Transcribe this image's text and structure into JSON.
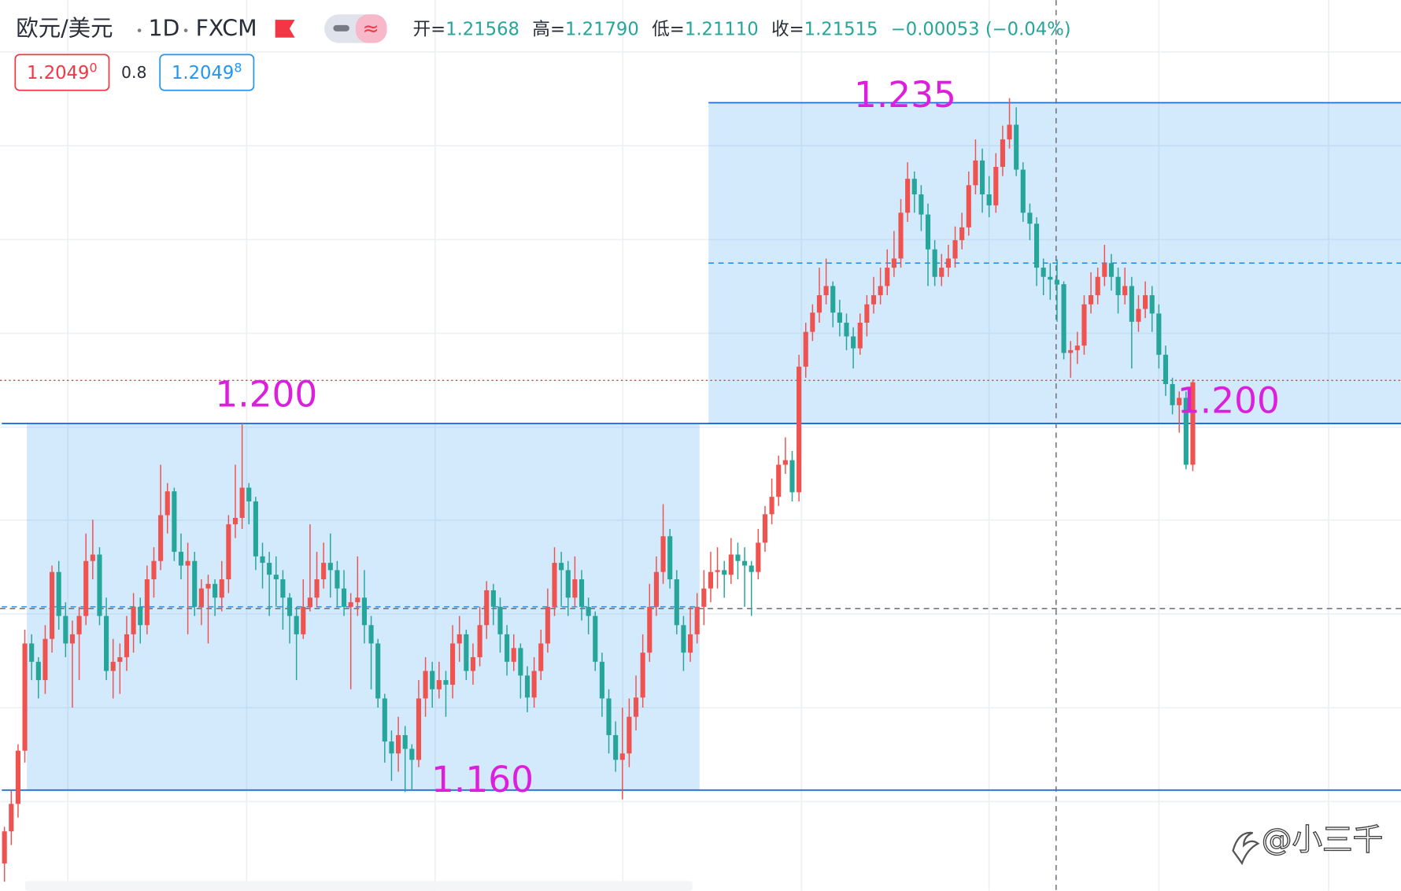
{
  "header": {
    "symbol": "欧元/美元",
    "interval": "1D",
    "source": "FXCM",
    "ohlc": [
      {
        "label": "开=",
        "value": "1.21568"
      },
      {
        "label": "高=",
        "value": "1.21790"
      },
      {
        "label": "低=",
        "value": "1.21110"
      },
      {
        "label": "收=",
        "value": "1.21515"
      }
    ],
    "change": "−0.00053 (−0.04%)"
  },
  "quote": {
    "sell": {
      "price": "1.2049",
      "pip": "0"
    },
    "spread": "0.8",
    "buy": {
      "price": "1.2049",
      "pip": "8"
    }
  },
  "watermark": "@小三千",
  "chart_data": {
    "type": "candlestick",
    "up_color": "#ef5350",
    "down_color": "#26a69a",
    "ylim": [
      1.149,
      1.2462
    ],
    "boxes": [
      {
        "top": 1.2,
        "bottom": 1.16
      },
      {
        "top": 1.235,
        "bottom": 1.2
      }
    ],
    "annotations": [
      {
        "value": 1.235,
        "label": "1.235"
      },
      {
        "value": 1.2,
        "label": "1.200"
      },
      {
        "value": 1.2,
        "label": "1.200"
      },
      {
        "value": 1.16,
        "label": "1.160"
      }
    ],
    "last_price": 1.2047,
    "crosshair_price": 1.1798,
    "ohlc": [
      [
        1.152,
        1.156,
        1.15,
        1.1555
      ],
      [
        1.1555,
        1.16,
        1.154,
        1.1585
      ],
      [
        1.1585,
        1.165,
        1.157,
        1.1643
      ],
      [
        1.1643,
        1.1775,
        1.163,
        1.176
      ],
      [
        1.176,
        1.177,
        1.172,
        1.174
      ],
      [
        1.174,
        1.1745,
        1.17,
        1.172
      ],
      [
        1.172,
        1.178,
        1.1705,
        1.1765
      ],
      [
        1.1765,
        1.1845,
        1.175,
        1.1838
      ],
      [
        1.1838,
        1.185,
        1.1775,
        1.179
      ],
      [
        1.179,
        1.1805,
        1.1745,
        1.176
      ],
      [
        1.176,
        1.1785,
        1.169,
        1.177
      ],
      [
        1.177,
        1.18,
        1.172,
        1.179
      ],
      [
        1.179,
        1.188,
        1.178,
        1.185
      ],
      [
        1.185,
        1.1895,
        1.183,
        1.1857
      ],
      [
        1.1857,
        1.1865,
        1.178,
        1.179
      ],
      [
        1.179,
        1.181,
        1.172,
        1.173
      ],
      [
        1.173,
        1.1765,
        1.17,
        1.174
      ],
      [
        1.174,
        1.176,
        1.1705,
        1.1745
      ],
      [
        1.1745,
        1.179,
        1.173,
        1.177
      ],
      [
        1.177,
        1.1815,
        1.175,
        1.18
      ],
      [
        1.18,
        1.181,
        1.176,
        1.178
      ],
      [
        1.178,
        1.1845,
        1.177,
        1.183
      ],
      [
        1.183,
        1.1865,
        1.181,
        1.185
      ],
      [
        1.185,
        1.1955,
        1.184,
        1.19
      ],
      [
        1.19,
        1.1935,
        1.188,
        1.1926
      ],
      [
        1.1926,
        1.193,
        1.185,
        1.186
      ],
      [
        1.186,
        1.188,
        1.183,
        1.1845
      ],
      [
        1.1845,
        1.187,
        1.177,
        1.185
      ],
      [
        1.185,
        1.186,
        1.179,
        1.18
      ],
      [
        1.18,
        1.183,
        1.178,
        1.182
      ],
      [
        1.182,
        1.1835,
        1.176,
        1.1825
      ],
      [
        1.1825,
        1.183,
        1.179,
        1.181
      ],
      [
        1.181,
        1.185,
        1.1795,
        1.183
      ],
      [
        1.183,
        1.19,
        1.1815,
        1.189
      ],
      [
        1.189,
        1.1955,
        1.1875,
        1.1897
      ],
      [
        1.1897,
        1.2,
        1.1885,
        1.193
      ],
      [
        1.193,
        1.1935,
        1.189,
        1.1915
      ],
      [
        1.1915,
        1.192,
        1.184,
        1.1855
      ],
      [
        1.1855,
        1.187,
        1.182,
        1.1848
      ],
      [
        1.1848,
        1.186,
        1.179,
        1.1835
      ],
      [
        1.1835,
        1.1855,
        1.18,
        1.183
      ],
      [
        1.183,
        1.184,
        1.1775,
        1.181
      ],
      [
        1.181,
        1.1815,
        1.176,
        1.179
      ],
      [
        1.179,
        1.18,
        1.172,
        1.177
      ],
      [
        1.177,
        1.183,
        1.1765,
        1.18
      ],
      [
        1.18,
        1.189,
        1.1795,
        1.181
      ],
      [
        1.181,
        1.186,
        1.18,
        1.183
      ],
      [
        1.183,
        1.187,
        1.182,
        1.1848
      ],
      [
        1.1848,
        1.188,
        1.181,
        1.184
      ],
      [
        1.184,
        1.185,
        1.18,
        1.182
      ],
      [
        1.182,
        1.184,
        1.179,
        1.18
      ],
      [
        1.18,
        1.1815,
        1.171,
        1.1805
      ],
      [
        1.1805,
        1.1855,
        1.179,
        1.181
      ],
      [
        1.181,
        1.184,
        1.176,
        1.178
      ],
      [
        1.178,
        1.179,
        1.171,
        1.176
      ],
      [
        1.176,
        1.1765,
        1.169,
        1.17
      ],
      [
        1.17,
        1.1705,
        1.163,
        1.1653
      ],
      [
        1.1653,
        1.1665,
        1.161,
        1.164
      ],
      [
        1.164,
        1.168,
        1.162,
        1.166
      ],
      [
        1.166,
        1.167,
        1.1598,
        1.1645
      ],
      [
        1.1645,
        1.165,
        1.16,
        1.1633
      ],
      [
        1.1633,
        1.172,
        1.1625,
        1.17
      ],
      [
        1.17,
        1.1745,
        1.168,
        1.173
      ],
      [
        1.173,
        1.174,
        1.169,
        1.171
      ],
      [
        1.171,
        1.174,
        1.17,
        1.172
      ],
      [
        1.172,
        1.173,
        1.168,
        1.1715
      ],
      [
        1.1715,
        1.178,
        1.17,
        1.176
      ],
      [
        1.176,
        1.179,
        1.174,
        1.177
      ],
      [
        1.177,
        1.1775,
        1.172,
        1.173
      ],
      [
        1.173,
        1.176,
        1.1715,
        1.1745
      ],
      [
        1.1745,
        1.18,
        1.1735,
        1.178
      ],
      [
        1.178,
        1.1828,
        1.1765,
        1.1818
      ],
      [
        1.1818,
        1.1825,
        1.178,
        1.18
      ],
      [
        1.18,
        1.181,
        1.175,
        1.177
      ],
      [
        1.177,
        1.178,
        1.1725,
        1.174
      ],
      [
        1.174,
        1.177,
        1.173,
        1.1755
      ],
      [
        1.1755,
        1.176,
        1.17,
        1.1725
      ],
      [
        1.1725,
        1.1735,
        1.1685,
        1.1701
      ],
      [
        1.1701,
        1.1745,
        1.169,
        1.173
      ],
      [
        1.173,
        1.1775,
        1.172,
        1.176
      ],
      [
        1.176,
        1.182,
        1.175,
        1.18
      ],
      [
        1.18,
        1.1865,
        1.179,
        1.1848
      ],
      [
        1.1848,
        1.186,
        1.18,
        1.184
      ],
      [
        1.184,
        1.185,
        1.179,
        1.181
      ],
      [
        1.181,
        1.1855,
        1.18,
        1.183
      ],
      [
        1.183,
        1.184,
        1.1785,
        1.18
      ],
      [
        1.18,
        1.181,
        1.177,
        1.179
      ],
      [
        1.179,
        1.1795,
        1.173,
        1.174
      ],
      [
        1.174,
        1.175,
        1.168,
        1.17
      ],
      [
        1.17,
        1.171,
        1.164,
        1.166
      ],
      [
        1.166,
        1.1675,
        1.162,
        1.1633
      ],
      [
        1.1633,
        1.169,
        1.159,
        1.164
      ],
      [
        1.164,
        1.17,
        1.1625,
        1.168
      ],
      [
        1.168,
        1.1725,
        1.1665,
        1.1701
      ],
      [
        1.1701,
        1.177,
        1.169,
        1.175
      ],
      [
        1.175,
        1.1825,
        1.174,
        1.18
      ],
      [
        1.18,
        1.1855,
        1.179,
        1.1838
      ],
      [
        1.1838,
        1.1912,
        1.1825,
        1.1877
      ],
      [
        1.1877,
        1.1885,
        1.182,
        1.183
      ],
      [
        1.183,
        1.184,
        1.177,
        1.178
      ],
      [
        1.178,
        1.179,
        1.173,
        1.175
      ],
      [
        1.175,
        1.18,
        1.174,
        1.177
      ],
      [
        1.177,
        1.1815,
        1.176,
        1.18
      ],
      [
        1.18,
        1.184,
        1.178,
        1.182
      ],
      [
        1.182,
        1.186,
        1.1805,
        1.1838
      ],
      [
        1.1838,
        1.1865,
        1.182,
        1.184
      ],
      [
        1.184,
        1.185,
        1.181,
        1.1835
      ],
      [
        1.1835,
        1.1875,
        1.1825,
        1.1857
      ],
      [
        1.1857,
        1.187,
        1.183,
        1.185
      ],
      [
        1.185,
        1.1865,
        1.18,
        1.1845
      ],
      [
        1.1845,
        1.185,
        1.179,
        1.1838
      ],
      [
        1.1838,
        1.1885,
        1.183,
        1.187
      ],
      [
        1.187,
        1.191,
        1.186,
        1.1901
      ],
      [
        1.1901,
        1.194,
        1.189,
        1.192
      ],
      [
        1.192,
        1.1965,
        1.191,
        1.1955
      ],
      [
        1.1955,
        1.1985,
        1.1945,
        1.196
      ],
      [
        1.196,
        1.197,
        1.1915,
        1.1925
      ],
      [
        1.1925,
        1.2075,
        1.1915,
        1.2062
      ],
      [
        1.2062,
        1.211,
        1.205,
        1.21
      ],
      [
        1.21,
        1.213,
        1.209,
        1.2121
      ],
      [
        1.2121,
        1.217,
        1.211,
        1.214
      ],
      [
        1.214,
        1.218,
        1.213,
        1.215
      ],
      [
        1.215,
        1.2155,
        1.2105,
        1.2121
      ],
      [
        1.2121,
        1.2135,
        1.2095,
        1.211
      ],
      [
        1.211,
        1.212,
        1.208,
        1.2095
      ],
      [
        1.2095,
        1.2105,
        1.206,
        1.2082
      ],
      [
        1.2082,
        1.212,
        1.2075,
        1.211
      ],
      [
        1.211,
        1.214,
        1.2095,
        1.213
      ],
      [
        1.213,
        1.216,
        1.212,
        1.214
      ],
      [
        1.214,
        1.217,
        1.213,
        1.215
      ],
      [
        1.215,
        1.219,
        1.214,
        1.217
      ],
      [
        1.217,
        1.221,
        1.216,
        1.218
      ],
      [
        1.218,
        1.2245,
        1.217,
        1.223
      ],
      [
        1.223,
        1.2285,
        1.222,
        1.2267
      ],
      [
        1.2267,
        1.2275,
        1.223,
        1.225
      ],
      [
        1.225,
        1.226,
        1.221,
        1.2228
      ],
      [
        1.2228,
        1.224,
        1.215,
        1.219
      ],
      [
        1.219,
        1.22,
        1.215,
        1.216
      ],
      [
        1.216,
        1.2185,
        1.215,
        1.217
      ],
      [
        1.217,
        1.2195,
        1.216,
        1.218
      ],
      [
        1.218,
        1.2215,
        1.217,
        1.22
      ],
      [
        1.22,
        1.223,
        1.219,
        1.2214
      ],
      [
        1.2214,
        1.2275,
        1.2205,
        1.226
      ],
      [
        1.226,
        1.231,
        1.225,
        1.2287
      ],
      [
        1.2287,
        1.23,
        1.223,
        1.225
      ],
      [
        1.225,
        1.227,
        1.2225,
        1.2238
      ],
      [
        1.2238,
        1.2295,
        1.223,
        1.228
      ],
      [
        1.228,
        1.2325,
        1.227,
        1.231
      ],
      [
        1.231,
        1.2355,
        1.23,
        1.2326
      ],
      [
        1.2326,
        1.2345,
        1.227,
        1.2277
      ],
      [
        1.2277,
        1.2285,
        1.222,
        1.223
      ],
      [
        1.223,
        1.224,
        1.22,
        1.2218
      ],
      [
        1.2218,
        1.2225,
        1.215,
        1.217
      ],
      [
        1.217,
        1.218,
        1.214,
        1.216
      ],
      [
        1.216,
        1.2175,
        1.2135,
        1.2157
      ],
      [
        1.21568,
        1.2179,
        1.2111,
        1.21515
      ],
      [
        1.2152,
        1.2155,
        1.207,
        1.2077
      ],
      [
        1.2077,
        1.209,
        1.205,
        1.208
      ],
      [
        1.208,
        1.21,
        1.2065,
        1.2085
      ],
      [
        1.2085,
        1.214,
        1.2075,
        1.213
      ],
      [
        1.213,
        1.2165,
        1.212,
        1.214
      ],
      [
        1.214,
        1.217,
        1.213,
        1.216
      ],
      [
        1.216,
        1.2195,
        1.215,
        1.2175
      ],
      [
        1.2175,
        1.2185,
        1.2145,
        1.216
      ],
      [
        1.216,
        1.217,
        1.212,
        1.214
      ],
      [
        1.214,
        1.217,
        1.213,
        1.215
      ],
      [
        1.215,
        1.216,
        1.206,
        1.2111
      ],
      [
        1.2111,
        1.214,
        1.21,
        1.2125
      ],
      [
        1.2125,
        1.2155,
        1.2115,
        1.214
      ],
      [
        1.214,
        1.215,
        1.21,
        1.212
      ],
      [
        1.212,
        1.213,
        1.206,
        1.2075
      ],
      [
        1.2075,
        1.2085,
        1.203,
        1.2043
      ],
      [
        1.2043,
        1.205,
        1.201,
        1.202
      ],
      [
        1.202,
        1.2035,
        1.199,
        1.2028
      ],
      [
        1.2028,
        1.2035,
        1.195,
        1.1955
      ],
      [
        1.1955,
        1.2048,
        1.1948,
        1.2045
      ]
    ]
  }
}
